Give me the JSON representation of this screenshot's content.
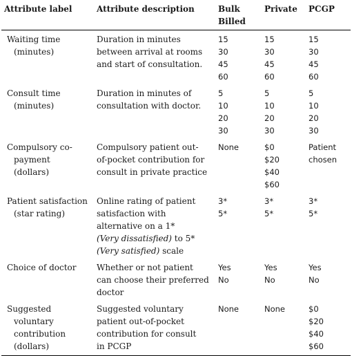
{
  "headers": {
    "label": "Attribute label",
    "description": "Attribute description",
    "bulk": [
      "Bulk",
      "Billed"
    ],
    "private": "Private",
    "pcgp": "PCGP"
  },
  "rows": [
    {
      "label": [
        "Waiting time",
        "(minutes)"
      ],
      "description": [
        {
          "text": "Duration in minutes",
          "italic": false
        },
        {
          "text": "between arrival at rooms",
          "italic": false
        },
        {
          "text": "and start of consultation.",
          "italic": false
        }
      ],
      "bulk": [
        "15",
        "30",
        "45",
        "60"
      ],
      "private": [
        "15",
        "30",
        "45",
        "60"
      ],
      "pcgp": [
        "15",
        "30",
        "45",
        "60"
      ]
    },
    {
      "label": [
        "Consult time",
        "(minutes)"
      ],
      "description": [
        {
          "text": "Duration in minutes of",
          "italic": false
        },
        {
          "text": "consultation with doctor.",
          "italic": false
        }
      ],
      "bulk": [
        "5",
        "10",
        "20",
        "30"
      ],
      "private": [
        "5",
        "10",
        "20",
        "30"
      ],
      "pcgp": [
        "5",
        "10",
        "20",
        "30"
      ]
    },
    {
      "label": [
        "Compulsory co-",
        "payment",
        "(dollars)"
      ],
      "description": [
        {
          "text": "Compulsory patient out-",
          "italic": false
        },
        {
          "text": "of-pocket contribution for",
          "italic": false
        },
        {
          "text": "consult in private practice",
          "italic": false
        }
      ],
      "bulk": [
        "None"
      ],
      "private": [
        "$0",
        "$20",
        "$40",
        "$60"
      ],
      "pcgp": [
        "Patient",
        "chosen"
      ]
    },
    {
      "label": [
        "Patient satisfaction",
        "(star rating)"
      ],
      "description": [
        {
          "text": "Online rating of patient",
          "italic": false
        },
        {
          "text": "satisfaction with",
          "italic": false
        },
        {
          "text": "alternative on a 1*",
          "italic": false
        },
        {
          "text": "(Very dissatisfied) to 5*",
          "italic": "partial",
          "italic_part": "(Very dissatisfied)",
          "rest": " to 5*"
        },
        {
          "text": "(Very satisfied) scale",
          "italic": "partial",
          "italic_part": "(Very satisfied)",
          "rest": " scale"
        }
      ],
      "bulk": [
        "3*",
        "5*"
      ],
      "private": [
        "3*",
        "5*"
      ],
      "pcgp": [
        "3*",
        "5*"
      ]
    },
    {
      "label": [
        "Choice of doctor"
      ],
      "description": [
        {
          "text": "Whether or not patient",
          "italic": false
        },
        {
          "text": "can choose their preferred",
          "italic": false
        },
        {
          "text": "doctor",
          "italic": false
        }
      ],
      "bulk": [
        "Yes",
        "No"
      ],
      "private": [
        "Yes",
        "No"
      ],
      "pcgp": [
        "Yes",
        "No"
      ]
    },
    {
      "label": [
        "Suggested",
        "voluntary",
        "contribution",
        "(dollars)"
      ],
      "description": [
        {
          "text": "Suggested voluntary",
          "italic": false
        },
        {
          "text": "patient out-of-pocket",
          "italic": false
        },
        {
          "text": "contribution for consult",
          "italic": false
        },
        {
          "text": "in PCGP",
          "italic": false
        }
      ],
      "bulk": [
        "None"
      ],
      "private": [
        "None"
      ],
      "pcgp": [
        "$0",
        "$20",
        "$40",
        "$60"
      ]
    }
  ]
}
